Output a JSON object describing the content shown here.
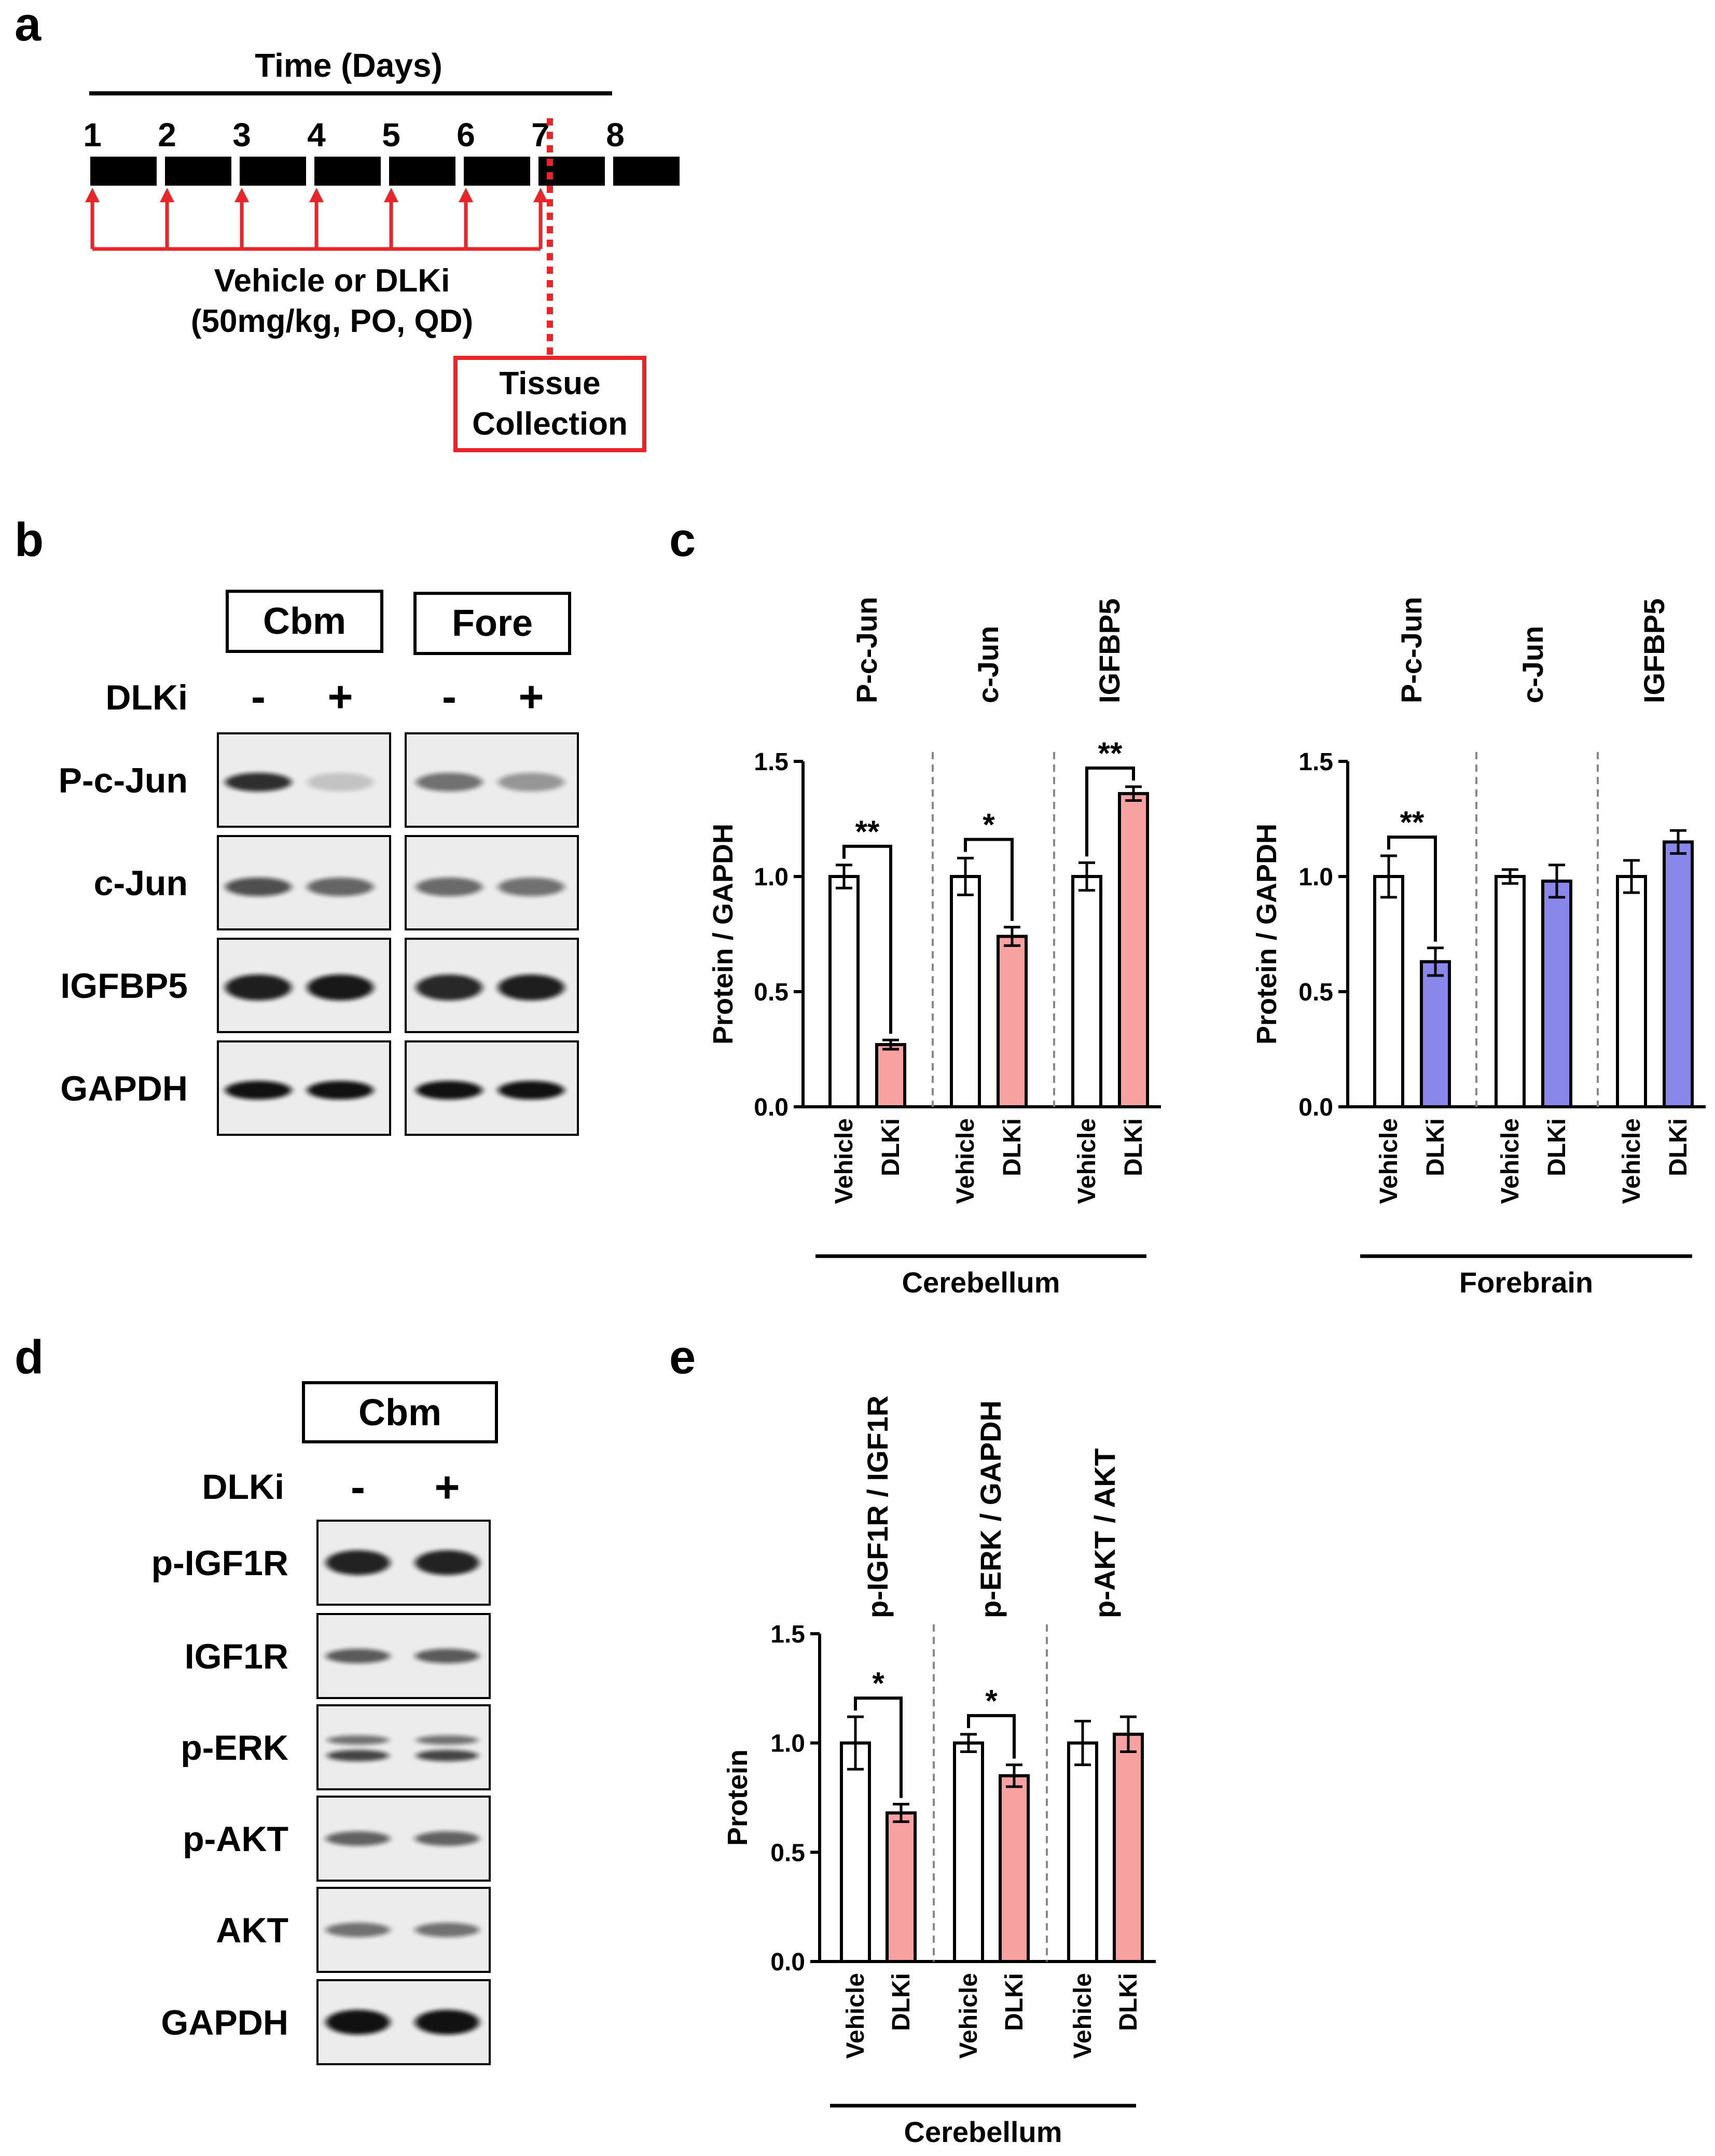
{
  "panel_labels": {
    "a": "a",
    "b": "b",
    "c": "c",
    "d": "d",
    "e": "e"
  },
  "timeline": {
    "title": "Time (Days)",
    "days": [
      "1",
      "2",
      "3",
      "4",
      "5",
      "6",
      "7",
      "8"
    ],
    "dosing_line1": "Vehicle or DLKi",
    "dosing_line2": "(50mg/kg, PO, QD)",
    "collection_line1": "Tissue",
    "collection_line2": "Collection",
    "colors": {
      "dose": "#e8262a",
      "bar": "#000000"
    }
  },
  "blot_b": {
    "tissues": [
      "Cbm",
      "Fore"
    ],
    "treatment_label": "DLKi",
    "signs": [
      "-",
      "+",
      "-",
      "+"
    ],
    "rows": [
      "P-c-Jun",
      "c-Jun",
      "IGFBP5",
      "GAPDH"
    ]
  },
  "blot_d": {
    "tissue": "Cbm",
    "treatment_label": "DLKi",
    "signs": [
      "-",
      "+"
    ],
    "rows": [
      "p-IGF1R",
      "IGF1R",
      "p-ERK",
      "p-AKT",
      "AKT",
      "GAPDH"
    ]
  },
  "chart_data": [
    {
      "id": "c-cerebellum",
      "type": "bar",
      "ylabel": "Protein / GAPDH",
      "ylim": [
        0,
        1.5
      ],
      "yticks": [
        "0.0",
        "0.5",
        "1.0",
        "1.5"
      ],
      "region": "Cerebellum",
      "fill_color": "#f7a1a1",
      "groups": [
        {
          "protein": "P-c-Jun",
          "categories": [
            "Vehicle",
            "DLKi"
          ],
          "values": [
            1.0,
            0.27
          ],
          "errors": [
            0.05,
            0.02
          ],
          "sig": "**"
        },
        {
          "protein": "c-Jun",
          "categories": [
            "Vehicle",
            "DLKi"
          ],
          "values": [
            1.0,
            0.74
          ],
          "errors": [
            0.08,
            0.04
          ],
          "sig": "*"
        },
        {
          "protein": "IGFBP5",
          "categories": [
            "Vehicle",
            "DLKi"
          ],
          "values": [
            1.0,
            1.36
          ],
          "errors": [
            0.06,
            0.03
          ],
          "sig": "**"
        }
      ]
    },
    {
      "id": "c-forebrain",
      "type": "bar",
      "ylabel": "Protein / GAPDH",
      "ylim": [
        0,
        1.5
      ],
      "yticks": [
        "0.0",
        "0.5",
        "1.0",
        "1.5"
      ],
      "region": "Forebrain",
      "fill_color": "#8a87ea",
      "groups": [
        {
          "protein": "P-c-Jun",
          "categories": [
            "Vehicle",
            "DLKi"
          ],
          "values": [
            1.0,
            0.63
          ],
          "errors": [
            0.09,
            0.06
          ],
          "sig": "**"
        },
        {
          "protein": "c-Jun",
          "categories": [
            "Vehicle",
            "DLKi"
          ],
          "values": [
            1.0,
            0.98
          ],
          "errors": [
            0.03,
            0.07
          ],
          "sig": ""
        },
        {
          "protein": "IGFBP5",
          "categories": [
            "Vehicle",
            "DLKi"
          ],
          "values": [
            1.0,
            1.15
          ],
          "errors": [
            0.07,
            0.05
          ],
          "sig": ""
        }
      ]
    },
    {
      "id": "e-cerebellum",
      "type": "bar",
      "ylabel": "Protein",
      "ylim": [
        0,
        1.5
      ],
      "yticks": [
        "0.0",
        "0.5",
        "1.0",
        "1.5"
      ],
      "region": "Cerebellum",
      "fill_color": "#f7a1a1",
      "groups": [
        {
          "protein": "p-IGF1R / IGF1R",
          "categories": [
            "Vehicle",
            "DLKi"
          ],
          "values": [
            1.0,
            0.68
          ],
          "errors": [
            0.12,
            0.04
          ],
          "sig": "*"
        },
        {
          "protein": "p-ERK / GAPDH",
          "categories": [
            "Vehicle",
            "DLKi"
          ],
          "values": [
            1.0,
            0.85
          ],
          "errors": [
            0.04,
            0.05
          ],
          "sig": "*"
        },
        {
          "protein": "p-AKT / AKT",
          "categories": [
            "Vehicle",
            "DLKi"
          ],
          "values": [
            1.0,
            1.04
          ],
          "errors": [
            0.1,
            0.08
          ],
          "sig": ""
        }
      ]
    }
  ]
}
